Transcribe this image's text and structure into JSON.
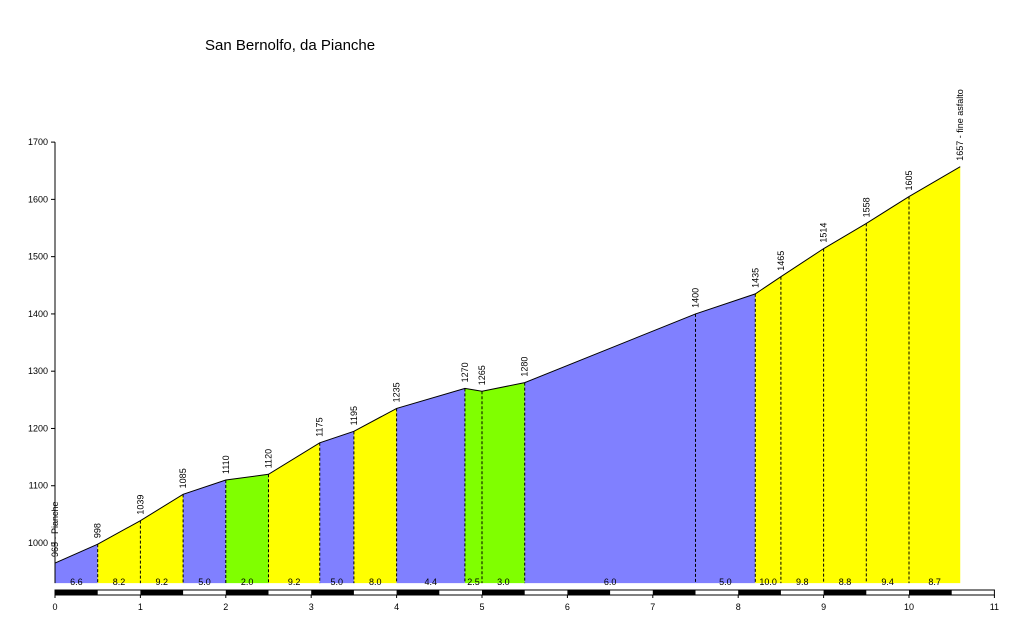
{
  "chart_data": {
    "type": "area",
    "title": "San Bernolfo, da Pianche",
    "xlabel": "",
    "ylabel": "",
    "xlim": [
      0,
      11
    ],
    "ylim": [
      930,
      1700
    ],
    "xticks": [
      "0",
      "1",
      "2",
      "3",
      "4",
      "5",
      "6",
      "7",
      "8",
      "9",
      "10",
      "11"
    ],
    "yticks": [
      "1000",
      "1100",
      "1200",
      "1300",
      "1400",
      "1500",
      "1600",
      "1700"
    ],
    "colors": {
      "low": "#8080ff",
      "medium": "#ffff00",
      "flat": "#80ff00"
    },
    "profile": [
      {
        "x": 0,
        "y": 965,
        "label": "965 - Pianche"
      },
      {
        "x": 0.5,
        "y": 998,
        "label": "998"
      },
      {
        "x": 1.0,
        "y": 1039,
        "label": "1039"
      },
      {
        "x": 1.5,
        "y": 1085,
        "label": "1085"
      },
      {
        "x": 2.0,
        "y": 1110,
        "label": "1110"
      },
      {
        "x": 2.5,
        "y": 1120,
        "label": "1120"
      },
      {
        "x": 3.1,
        "y": 1175,
        "label": "1175"
      },
      {
        "x": 3.5,
        "y": 1195,
        "label": "1195"
      },
      {
        "x": 4.0,
        "y": 1235,
        "label": "1235"
      },
      {
        "x": 4.8,
        "y": 1270,
        "label": "1270"
      },
      {
        "x": 5.0,
        "y": 1265,
        "label": "1265"
      },
      {
        "x": 5.5,
        "y": 1280,
        "label": "1280"
      },
      {
        "x": 7.5,
        "y": 1400,
        "label": "1400"
      },
      {
        "x": 8.2,
        "y": 1435,
        "label": "1435"
      },
      {
        "x": 8.5,
        "y": 1465,
        "label": "1465"
      },
      {
        "x": 9.0,
        "y": 1514,
        "label": "1514"
      },
      {
        "x": 9.5,
        "y": 1558,
        "label": "1558"
      },
      {
        "x": 10.0,
        "y": 1605,
        "label": "1605"
      },
      {
        "x": 10.6,
        "y": 1657,
        "label": "1657 - fine asfalto"
      }
    ],
    "segments": [
      {
        "grade": "6.6",
        "color": "low"
      },
      {
        "grade": "8.2",
        "color": "medium"
      },
      {
        "grade": "9.2",
        "color": "medium"
      },
      {
        "grade": "5.0",
        "color": "low"
      },
      {
        "grade": "2.0",
        "color": "flat"
      },
      {
        "grade": "9.2",
        "color": "medium"
      },
      {
        "grade": "5.0",
        "color": "low"
      },
      {
        "grade": "8.0",
        "color": "medium"
      },
      {
        "grade": "4.4",
        "color": "low"
      },
      {
        "grade": "2.5",
        "color": "flat"
      },
      {
        "grade": "3.0",
        "color": "flat"
      },
      {
        "grade": "6.0",
        "color": "low"
      },
      {
        "grade": "5.0",
        "color": "low"
      },
      {
        "grade": "10.0",
        "color": "medium"
      },
      {
        "grade": "9.8",
        "color": "medium"
      },
      {
        "grade": "8.8",
        "color": "medium"
      },
      {
        "grade": "9.4",
        "color": "medium"
      },
      {
        "grade": "8.7",
        "color": "medium"
      }
    ]
  }
}
